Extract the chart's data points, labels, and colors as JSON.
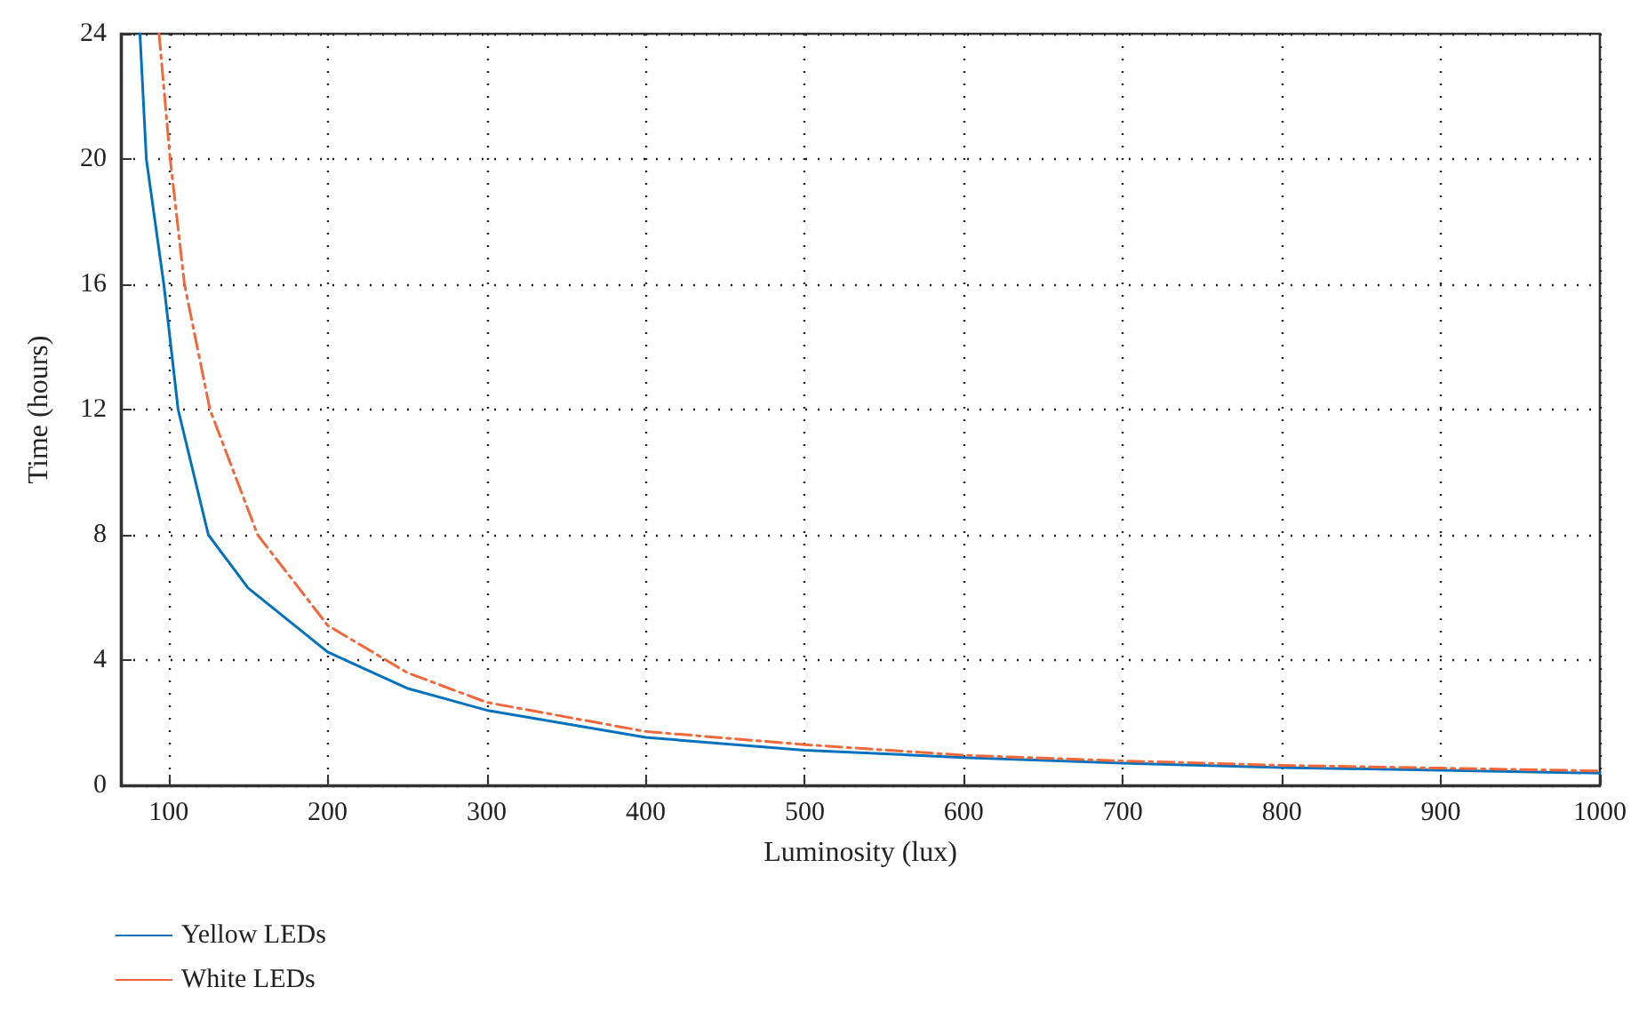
{
  "chart_data": {
    "type": "line",
    "xlabel": "Luminosity (lux)",
    "ylabel": "Time (hours)",
    "xlim": [
      70,
      1000
    ],
    "ylim": [
      0,
      24
    ],
    "xticks": [
      100,
      200,
      300,
      400,
      500,
      600,
      700,
      800,
      900,
      1000
    ],
    "yticks": [
      0,
      4,
      8,
      12,
      16,
      20,
      24
    ],
    "grid": true,
    "legend": "bottom left",
    "marker": "none",
    "series": [
      {
        "name": "Yellow LEDs",
        "color": "#0072bd",
        "line_style": "solid",
        "x": [
          82,
          86,
          97,
          106,
          125,
          150,
          200,
          250,
          300,
          400,
          500,
          600,
          700,
          800,
          900,
          1000
        ],
        "values": [
          24,
          20,
          16,
          12,
          8,
          6.3,
          4.26,
          3.1,
          2.4,
          1.53,
          1.12,
          0.89,
          0.71,
          0.57,
          0.48,
          0.39
        ]
      },
      {
        "name": "White LEDs",
        "color": "#f2673a",
        "line_style": "dashdot",
        "x": [
          94,
          101,
          110,
          126,
          156,
          200,
          250,
          300,
          400,
          500,
          600,
          700,
          800,
          900,
          1000
        ],
        "values": [
          24,
          20,
          16,
          12,
          8,
          5.11,
          3.6,
          2.65,
          1.72,
          1.3,
          0.96,
          0.78,
          0.64,
          0.55,
          0.46
        ]
      }
    ]
  }
}
